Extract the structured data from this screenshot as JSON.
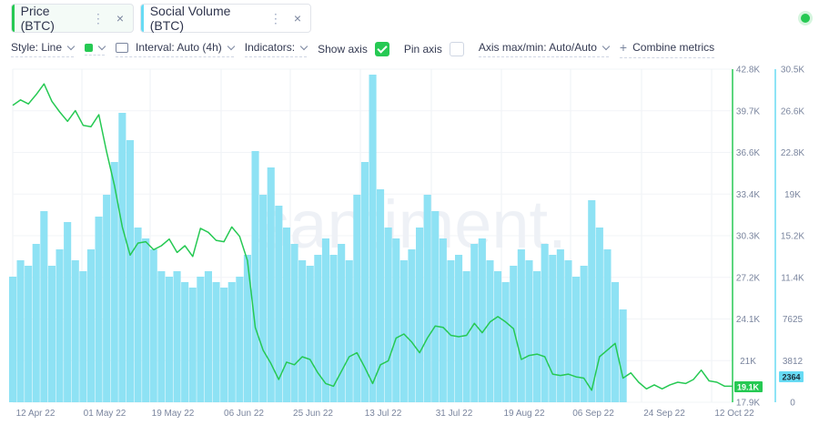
{
  "tabs": [
    {
      "label": "Price (BTC)",
      "color": "#26c953",
      "dots": "⋮",
      "close": "×"
    },
    {
      "label": "Social Volume (BTC)",
      "color": "#68dbf4",
      "dots": "⋮",
      "close": "×"
    }
  ],
  "toolbar": {
    "style_label": "Style: Line",
    "metric_color": "#26c953",
    "interval_label": "Interval: Auto (4h)",
    "indicators_label": "Indicators:",
    "show_axis_label": "Show axis",
    "show_axis_checked": true,
    "pin_axis_label": "Pin axis",
    "pin_axis_checked": false,
    "axis_label": "Axis max/min: Auto/Auto",
    "combine_label": "Combine metrics"
  },
  "watermark": "santiment.",
  "chart_data": {
    "type": "line",
    "x_labels": [
      "12 Apr 22",
      "01 May 22",
      "19 May 22",
      "06 Jun 22",
      "25 Jun 22",
      "13 Jul 22",
      "31 Jul 22",
      "19 Aug 22",
      "06 Sep 22",
      "24 Sep 22",
      "12 Oct 22"
    ],
    "price_axis": [
      "42.8K",
      "39.7K",
      "36.6K",
      "33.4K",
      "30.3K",
      "27.2K",
      "24.1K",
      "21K",
      "17.9K"
    ],
    "social_axis": [
      "30.5K",
      "26.6K",
      "22.8K",
      "19K",
      "15.2K",
      "11.4K",
      "7625",
      "3812",
      "0"
    ],
    "price_current": "19.1K",
    "social_current": "2364",
    "price_range": [
      17900,
      42800
    ],
    "social_range": [
      0,
      30500
    ],
    "series": [
      {
        "name": "Price (BTC)",
        "color": "#26c953",
        "points": [
          [
            "2022-04-12",
            40100
          ],
          [
            "2022-04-14",
            40500
          ],
          [
            "2022-04-16",
            40200
          ],
          [
            "2022-04-18",
            40900
          ],
          [
            "2022-04-20",
            41700
          ],
          [
            "2022-04-22",
            40400
          ],
          [
            "2022-04-24",
            39600
          ],
          [
            "2022-04-26",
            38900
          ],
          [
            "2022-04-28",
            39700
          ],
          [
            "2022-04-30",
            38600
          ],
          [
            "2022-05-02",
            38500
          ],
          [
            "2022-05-04",
            39400
          ],
          [
            "2022-05-06",
            36600
          ],
          [
            "2022-05-08",
            34100
          ],
          [
            "2022-05-10",
            31000
          ],
          [
            "2022-05-12",
            28900
          ],
          [
            "2022-05-14",
            29800
          ],
          [
            "2022-05-16",
            29900
          ],
          [
            "2022-05-18",
            29300
          ],
          [
            "2022-05-20",
            29600
          ],
          [
            "2022-05-22",
            30100
          ],
          [
            "2022-05-24",
            29100
          ],
          [
            "2022-05-26",
            29600
          ],
          [
            "2022-05-28",
            28800
          ],
          [
            "2022-05-30",
            30900
          ],
          [
            "2022-06-01",
            30600
          ],
          [
            "2022-06-03",
            30000
          ],
          [
            "2022-06-05",
            29900
          ],
          [
            "2022-06-07",
            31000
          ],
          [
            "2022-06-09",
            30300
          ],
          [
            "2022-06-11",
            28500
          ],
          [
            "2022-06-13",
            23500
          ],
          [
            "2022-06-15",
            21800
          ],
          [
            "2022-06-17",
            20800
          ],
          [
            "2022-06-19",
            19600
          ],
          [
            "2022-06-21",
            20900
          ],
          [
            "2022-06-23",
            20700
          ],
          [
            "2022-06-25",
            21300
          ],
          [
            "2022-06-27",
            21100
          ],
          [
            "2022-06-29",
            20100
          ],
          [
            "2022-07-01",
            19300
          ],
          [
            "2022-07-03",
            19100
          ],
          [
            "2022-07-05",
            20200
          ],
          [
            "2022-07-07",
            21300
          ],
          [
            "2022-07-09",
            21600
          ],
          [
            "2022-07-11",
            20500
          ],
          [
            "2022-07-13",
            19300
          ],
          [
            "2022-07-15",
            20700
          ],
          [
            "2022-07-17",
            21000
          ],
          [
            "2022-07-19",
            22700
          ],
          [
            "2022-07-21",
            23000
          ],
          [
            "2022-07-23",
            22400
          ],
          [
            "2022-07-25",
            21600
          ],
          [
            "2022-07-27",
            22700
          ],
          [
            "2022-07-29",
            23600
          ],
          [
            "2022-07-31",
            23500
          ],
          [
            "2022-08-02",
            22900
          ],
          [
            "2022-08-04",
            22800
          ],
          [
            "2022-08-06",
            22900
          ],
          [
            "2022-08-08",
            23800
          ],
          [
            "2022-08-10",
            23100
          ],
          [
            "2022-08-12",
            23900
          ],
          [
            "2022-08-14",
            24300
          ],
          [
            "2022-08-16",
            23900
          ],
          [
            "2022-08-18",
            23400
          ],
          [
            "2022-08-20",
            21100
          ],
          [
            "2022-08-22",
            21400
          ],
          [
            "2022-08-24",
            21500
          ],
          [
            "2022-08-26",
            21300
          ],
          [
            "2022-08-28",
            20000
          ],
          [
            "2022-08-30",
            19900
          ],
          [
            "2022-09-01",
            20000
          ],
          [
            "2022-09-03",
            19800
          ],
          [
            "2022-09-05",
            19700
          ],
          [
            "2022-09-07",
            18800
          ],
          [
            "2022-09-09",
            21300
          ],
          [
            "2022-09-11",
            21800
          ],
          [
            "2022-09-13",
            22300
          ],
          [
            "2022-09-15",
            19700
          ],
          [
            "2022-09-17",
            20100
          ],
          [
            "2022-09-19",
            19400
          ],
          [
            "2022-09-21",
            18900
          ],
          [
            "2022-09-23",
            19200
          ],
          [
            "2022-09-25",
            18900
          ],
          [
            "2022-09-27",
            19200
          ],
          [
            "2022-09-29",
            19400
          ],
          [
            "2022-10-01",
            19300
          ],
          [
            "2022-10-03",
            19600
          ],
          [
            "2022-10-05",
            20300
          ],
          [
            "2022-10-07",
            19500
          ],
          [
            "2022-10-09",
            19400
          ],
          [
            "2022-10-11",
            19100
          ],
          [
            "2022-10-13",
            19100
          ]
        ]
      },
      {
        "name": "Social Volume (BTC)",
        "color": "#8ee2f4",
        "points": [
          [
            "2022-04-12",
            11500
          ],
          [
            "2022-04-14",
            13000
          ],
          [
            "2022-04-16",
            12500
          ],
          [
            "2022-04-18",
            14500
          ],
          [
            "2022-04-20",
            17500
          ],
          [
            "2022-04-22",
            12500
          ],
          [
            "2022-04-24",
            14000
          ],
          [
            "2022-04-26",
            16500
          ],
          [
            "2022-04-28",
            13000
          ],
          [
            "2022-04-30",
            12000
          ],
          [
            "2022-05-02",
            14000
          ],
          [
            "2022-05-04",
            17000
          ],
          [
            "2022-05-06",
            19000
          ],
          [
            "2022-05-08",
            22000
          ],
          [
            "2022-05-10",
            26500
          ],
          [
            "2022-05-12",
            24000
          ],
          [
            "2022-05-14",
            16000
          ],
          [
            "2022-05-16",
            15000
          ],
          [
            "2022-05-18",
            14000
          ],
          [
            "2022-05-20",
            12000
          ],
          [
            "2022-05-22",
            11500
          ],
          [
            "2022-05-24",
            12000
          ],
          [
            "2022-05-26",
            11000
          ],
          [
            "2022-05-28",
            10500
          ],
          [
            "2022-05-30",
            11500
          ],
          [
            "2022-06-01",
            12000
          ],
          [
            "2022-06-03",
            11000
          ],
          [
            "2022-06-05",
            10500
          ],
          [
            "2022-06-07",
            11000
          ],
          [
            "2022-06-09",
            11500
          ],
          [
            "2022-06-11",
            13500
          ],
          [
            "2022-06-13",
            23000
          ],
          [
            "2022-06-15",
            19000
          ],
          [
            "2022-06-17",
            21500
          ],
          [
            "2022-06-19",
            18000
          ],
          [
            "2022-06-21",
            16000
          ],
          [
            "2022-06-23",
            14500
          ],
          [
            "2022-06-25",
            13000
          ],
          [
            "2022-06-27",
            12500
          ],
          [
            "2022-06-29",
            13500
          ],
          [
            "2022-07-01",
            15000
          ],
          [
            "2022-07-03",
            13500
          ],
          [
            "2022-07-05",
            14500
          ],
          [
            "2022-07-07",
            13000
          ],
          [
            "2022-07-09",
            19000
          ],
          [
            "2022-07-11",
            22000
          ],
          [
            "2022-07-13",
            30000
          ],
          [
            "2022-07-15",
            19500
          ],
          [
            "2022-07-17",
            16000
          ],
          [
            "2022-07-19",
            15000
          ],
          [
            "2022-07-21",
            13000
          ],
          [
            "2022-07-23",
            14000
          ],
          [
            "2022-07-25",
            16000
          ],
          [
            "2022-07-27",
            19000
          ],
          [
            "2022-07-29",
            17500
          ],
          [
            "2022-07-31",
            15000
          ],
          [
            "2022-08-02",
            13000
          ],
          [
            "2022-08-04",
            13500
          ],
          [
            "2022-08-06",
            12000
          ],
          [
            "2022-08-08",
            14500
          ],
          [
            "2022-08-10",
            15000
          ],
          [
            "2022-08-12",
            13000
          ],
          [
            "2022-08-14",
            12000
          ],
          [
            "2022-08-16",
            11000
          ],
          [
            "2022-08-18",
            12500
          ],
          [
            "2022-08-20",
            14000
          ],
          [
            "2022-08-22",
            13000
          ],
          [
            "2022-08-24",
            12000
          ],
          [
            "2022-08-26",
            14500
          ],
          [
            "2022-08-28",
            13500
          ],
          [
            "2022-08-30",
            14000
          ],
          [
            "2022-09-01",
            13000
          ],
          [
            "2022-09-03",
            11500
          ],
          [
            "2022-09-05",
            12500
          ],
          [
            "2022-09-07",
            18500
          ],
          [
            "2022-09-09",
            16000
          ],
          [
            "2022-09-11",
            14000
          ],
          [
            "2022-09-13",
            11000
          ],
          [
            "2022-09-15",
            8500
          ],
          [
            "2022-09-17",
            0
          ]
        ]
      }
    ]
  }
}
